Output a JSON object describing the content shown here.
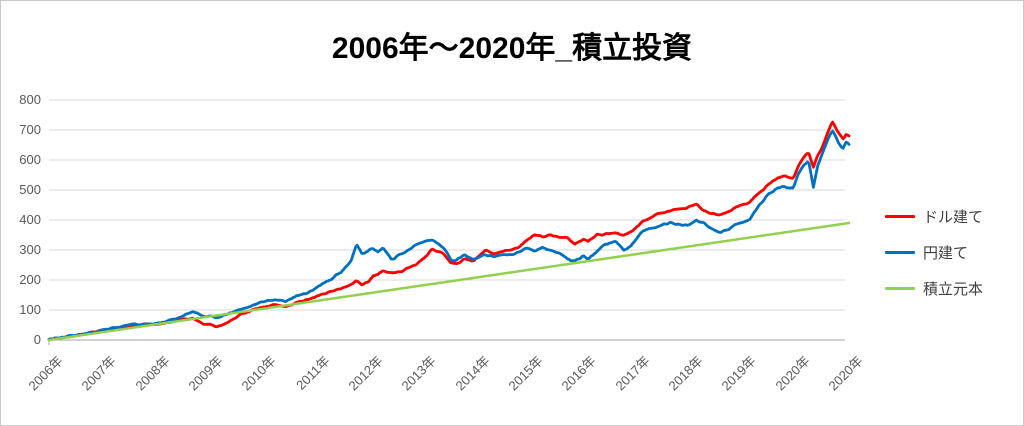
{
  "page": {
    "background": "#FFFFFF",
    "border_color": "#C8C8C8"
  },
  "chart_data": {
    "type": "line",
    "title": "2006年～2020年_積立投資",
    "grid": true,
    "legend_position": "right",
    "colors": {
      "grid": "#D9D9D9",
      "axis": "#A6A6A6",
      "tick_text": "#595959",
      "legend_text": "#404040",
      "title_text": "#000000"
    },
    "x_axis": {
      "start_year": 2006,
      "end_year": 2020.83,
      "labels": [
        "2006年",
        "2007年",
        "2008年",
        "2009年",
        "2010年",
        "2011年",
        "2012年",
        "2013年",
        "2014年",
        "2015年",
        "2016年",
        "2017年",
        "2018年",
        "2019年",
        "2020年",
        "2020年"
      ]
    },
    "y_axis": {
      "min": 0,
      "max": 800,
      "step": 100,
      "ticks": [
        0,
        100,
        200,
        300,
        400,
        500,
        600,
        700,
        800
      ]
    },
    "series": [
      {
        "name": "ドル建て",
        "color": "#FF0000",
        "noise": 4,
        "points": [
          [
            2006.0,
            2
          ],
          [
            2006.25,
            8
          ],
          [
            2006.5,
            15
          ],
          [
            2006.75,
            24
          ],
          [
            2007.0,
            31
          ],
          [
            2007.25,
            40
          ],
          [
            2007.5,
            48
          ],
          [
            2007.75,
            52
          ],
          [
            2008.0,
            53
          ],
          [
            2008.17,
            58
          ],
          [
            2008.33,
            63
          ],
          [
            2008.5,
            70
          ],
          [
            2008.67,
            72
          ],
          [
            2008.75,
            65
          ],
          [
            2008.9,
            52
          ],
          [
            2009.0,
            50
          ],
          [
            2009.1,
            45
          ],
          [
            2009.2,
            48
          ],
          [
            2009.35,
            62
          ],
          [
            2009.5,
            80
          ],
          [
            2009.7,
            95
          ],
          [
            2010.0,
            110
          ],
          [
            2010.2,
            118
          ],
          [
            2010.4,
            112
          ],
          [
            2010.6,
            125
          ],
          [
            2010.8,
            135
          ],
          [
            2011.0,
            148
          ],
          [
            2011.2,
            160
          ],
          [
            2011.4,
            172
          ],
          [
            2011.6,
            185
          ],
          [
            2011.7,
            196
          ],
          [
            2011.8,
            182
          ],
          [
            2011.9,
            192
          ],
          [
            2012.0,
            212
          ],
          [
            2012.1,
            220
          ],
          [
            2012.2,
            232
          ],
          [
            2012.35,
            222
          ],
          [
            2012.5,
            228
          ],
          [
            2012.65,
            238
          ],
          [
            2012.8,
            252
          ],
          [
            2013.0,
            280
          ],
          [
            2013.1,
            303
          ],
          [
            2013.2,
            295
          ],
          [
            2013.3,
            292
          ],
          [
            2013.45,
            258
          ],
          [
            2013.55,
            252
          ],
          [
            2013.7,
            270
          ],
          [
            2013.85,
            262
          ],
          [
            2014.0,
            285
          ],
          [
            2014.1,
            300
          ],
          [
            2014.25,
            285
          ],
          [
            2014.4,
            295
          ],
          [
            2014.55,
            300
          ],
          [
            2014.7,
            308
          ],
          [
            2014.85,
            330
          ],
          [
            2015.0,
            352
          ],
          [
            2015.15,
            345
          ],
          [
            2015.3,
            352
          ],
          [
            2015.45,
            342
          ],
          [
            2015.6,
            340
          ],
          [
            2015.75,
            322
          ],
          [
            2015.9,
            335
          ],
          [
            2016.0,
            328
          ],
          [
            2016.15,
            350
          ],
          [
            2016.3,
            352
          ],
          [
            2016.5,
            358
          ],
          [
            2016.65,
            348
          ],
          [
            2016.8,
            360
          ],
          [
            2017.0,
            395
          ],
          [
            2017.15,
            408
          ],
          [
            2017.3,
            422
          ],
          [
            2017.5,
            430
          ],
          [
            2017.7,
            438
          ],
          [
            2017.85,
            442
          ],
          [
            2018.0,
            452
          ],
          [
            2018.15,
            430
          ],
          [
            2018.3,
            422
          ],
          [
            2018.45,
            415
          ],
          [
            2018.6,
            430
          ],
          [
            2018.8,
            448
          ],
          [
            2019.0,
            460
          ],
          [
            2019.15,
            488
          ],
          [
            2019.35,
            522
          ],
          [
            2019.5,
            540
          ],
          [
            2019.65,
            545
          ],
          [
            2019.8,
            538
          ],
          [
            2019.9,
            585
          ],
          [
            2020.0,
            612
          ],
          [
            2020.08,
            625
          ],
          [
            2020.17,
            575
          ],
          [
            2020.25,
            615
          ],
          [
            2020.35,
            650
          ],
          [
            2020.45,
            695
          ],
          [
            2020.52,
            730
          ],
          [
            2020.58,
            708
          ],
          [
            2020.65,
            690
          ],
          [
            2020.72,
            672
          ],
          [
            2020.78,
            685
          ],
          [
            2020.83,
            678
          ]
        ]
      },
      {
        "name": "円建て",
        "color": "#0070C0",
        "noise": 4,
        "points": [
          [
            2006.0,
            2
          ],
          [
            2006.25,
            9
          ],
          [
            2006.5,
            16
          ],
          [
            2006.75,
            25
          ],
          [
            2007.0,
            33
          ],
          [
            2007.25,
            42
          ],
          [
            2007.5,
            50
          ],
          [
            2007.75,
            54
          ],
          [
            2008.0,
            55
          ],
          [
            2008.17,
            62
          ],
          [
            2008.33,
            70
          ],
          [
            2008.5,
            82
          ],
          [
            2008.67,
            95
          ],
          [
            2008.75,
            88
          ],
          [
            2008.9,
            78
          ],
          [
            2009.0,
            80
          ],
          [
            2009.1,
            72
          ],
          [
            2009.2,
            78
          ],
          [
            2009.35,
            90
          ],
          [
            2009.5,
            100
          ],
          [
            2009.7,
            112
          ],
          [
            2010.0,
            128
          ],
          [
            2010.2,
            136
          ],
          [
            2010.4,
            130
          ],
          [
            2010.6,
            148
          ],
          [
            2010.8,
            158
          ],
          [
            2011.0,
            180
          ],
          [
            2011.2,
            200
          ],
          [
            2011.4,
            225
          ],
          [
            2011.6,
            262
          ],
          [
            2011.7,
            322
          ],
          [
            2011.8,
            285
          ],
          [
            2011.9,
            295
          ],
          [
            2012.0,
            305
          ],
          [
            2012.1,
            295
          ],
          [
            2012.2,
            308
          ],
          [
            2012.35,
            268
          ],
          [
            2012.5,
            285
          ],
          [
            2012.65,
            298
          ],
          [
            2012.8,
            315
          ],
          [
            2013.0,
            330
          ],
          [
            2013.1,
            333
          ],
          [
            2013.2,
            320
          ],
          [
            2013.3,
            310
          ],
          [
            2013.45,
            268
          ],
          [
            2013.55,
            265
          ],
          [
            2013.7,
            285
          ],
          [
            2013.85,
            270
          ],
          [
            2014.0,
            280
          ],
          [
            2014.1,
            285
          ],
          [
            2014.25,
            278
          ],
          [
            2014.4,
            283
          ],
          [
            2014.55,
            285
          ],
          [
            2014.7,
            292
          ],
          [
            2014.85,
            305
          ],
          [
            2015.0,
            298
          ],
          [
            2015.15,
            308
          ],
          [
            2015.3,
            300
          ],
          [
            2015.45,
            290
          ],
          [
            2015.6,
            272
          ],
          [
            2015.75,
            262
          ],
          [
            2015.9,
            280
          ],
          [
            2016.0,
            270
          ],
          [
            2016.15,
            295
          ],
          [
            2016.3,
            318
          ],
          [
            2016.5,
            330
          ],
          [
            2016.65,
            300
          ],
          [
            2016.8,
            315
          ],
          [
            2017.0,
            365
          ],
          [
            2017.15,
            372
          ],
          [
            2017.3,
            380
          ],
          [
            2017.5,
            390
          ],
          [
            2017.7,
            385
          ],
          [
            2017.85,
            382
          ],
          [
            2018.0,
            398
          ],
          [
            2018.15,
            388
          ],
          [
            2018.3,
            372
          ],
          [
            2018.45,
            360
          ],
          [
            2018.6,
            370
          ],
          [
            2018.8,
            390
          ],
          [
            2019.0,
            405
          ],
          [
            2019.15,
            445
          ],
          [
            2019.35,
            488
          ],
          [
            2019.5,
            508
          ],
          [
            2019.65,
            512
          ],
          [
            2019.8,
            505
          ],
          [
            2019.9,
            558
          ],
          [
            2020.0,
            585
          ],
          [
            2020.08,
            598
          ],
          [
            2020.17,
            508
          ],
          [
            2020.25,
            585
          ],
          [
            2020.35,
            625
          ],
          [
            2020.45,
            672
          ],
          [
            2020.52,
            700
          ],
          [
            2020.58,
            680
          ],
          [
            2020.65,
            652
          ],
          [
            2020.72,
            638
          ],
          [
            2020.78,
            660
          ],
          [
            2020.83,
            652
          ]
        ]
      },
      {
        "name": "積立元本",
        "color": "#92D050",
        "noise": 0,
        "points": [
          [
            2006.0,
            0
          ],
          [
            2020.83,
            390
          ]
        ]
      }
    ]
  }
}
